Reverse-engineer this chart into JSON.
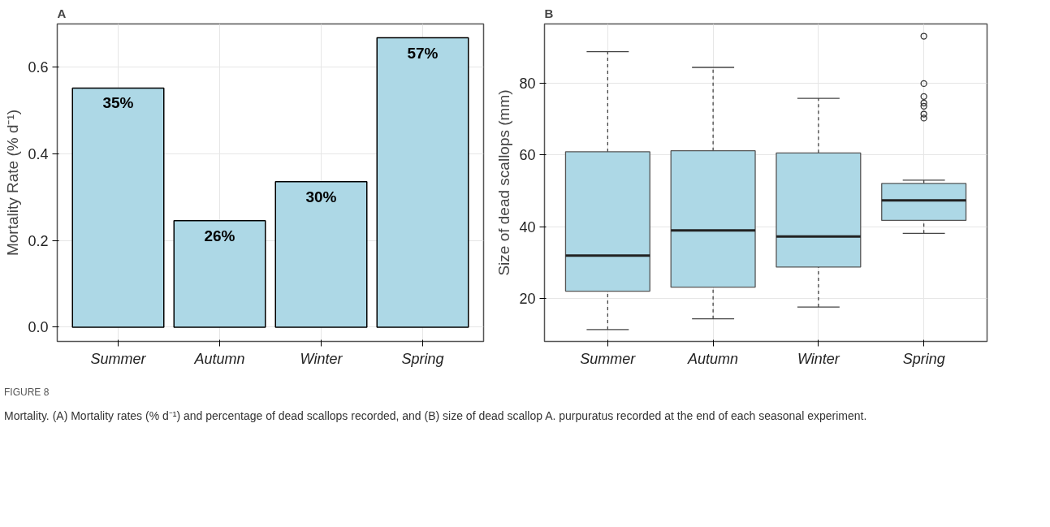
{
  "chart_data": [
    {
      "type": "bar",
      "title": "A",
      "ylabel": "Mortality Rate (% d⁻¹)",
      "categories": [
        "Summer",
        "Autumn",
        "Winter",
        "Spring"
      ],
      "color": "#add8e6",
      "values": [
        0.552,
        0.246,
        0.336,
        0.668
      ],
      "annotations": [
        {
          "text": "35%",
          "x": "Summer",
          "y": 0.552
        },
        {
          "text": "26%",
          "x": "Autumn",
          "y": 0.246
        },
        {
          "text": "30%",
          "x": "Winter",
          "y": 0.336
        },
        {
          "text": "57%",
          "x": "Spring",
          "y": 0.668
        }
      ],
      "ylim": [
        -0.033,
        0.7
      ],
      "yticks": [
        {
          "value": 0,
          "label": "0.0"
        },
        0.2,
        0.4,
        0.6
      ],
      "grid": true
    },
    {
      "type": "box",
      "title": "B",
      "ylabel": "Size of dead scallops (mm)",
      "categories": [
        "Summer",
        "Autumn",
        "Winter",
        "Spring"
      ],
      "color": "#add8e6",
      "boxes": [
        {
          "low": 11.4,
          "q1": 22.1,
          "median": 32.0,
          "q3": 60.9,
          "high": 88.8
        },
        {
          "low": 14.4,
          "q1": 23.2,
          "median": 39.0,
          "q3": 61.2,
          "high": 84.4
        },
        {
          "low": 17.7,
          "q1": 28.8,
          "median": 37.3,
          "q3": 60.6,
          "high": 75.8
        },
        {
          "low": 38.2,
          "q1": 41.8,
          "median": 47.4,
          "q3": 52.1,
          "high": 53.0,
          "outliers": [
            93.1,
            79.9,
            76.3,
            74.5,
            73.6,
            71.4,
            70.3
          ]
        }
      ],
      "ylim": [
        8.1,
        96.5
      ],
      "yticks": [
        20,
        40,
        60,
        80
      ],
      "grid": true,
      "annotations": [
        "FIGURE 8",
        "Mortality. (A) Mortality rates (% d⁻¹) and percentage of dead scallops recorded, and (B) size of dead scallop A. purpuratus recorded at the end of each seasonal experiment."
      ]
    }
  ]
}
